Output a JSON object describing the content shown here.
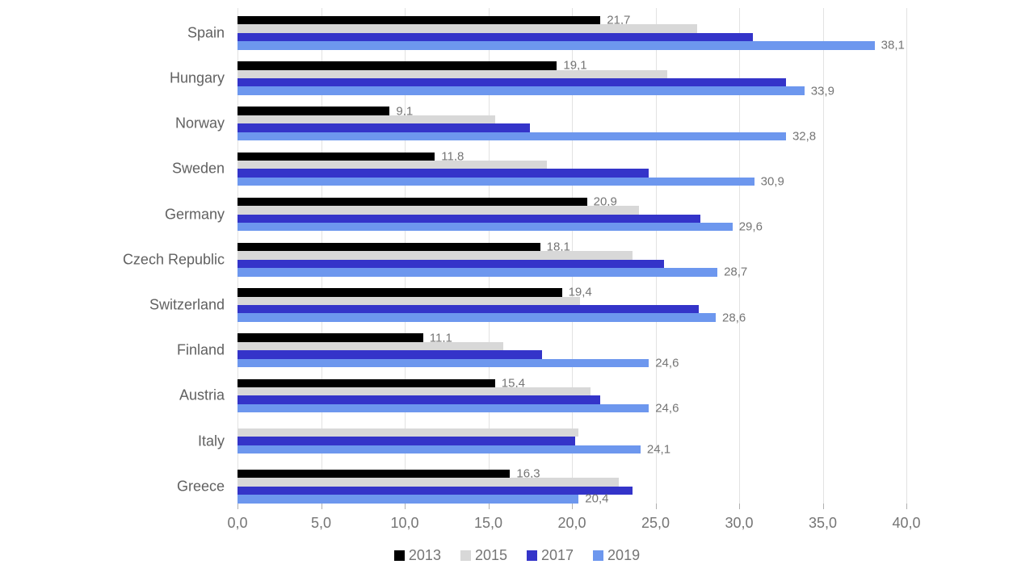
{
  "chart_data": {
    "type": "bar",
    "orientation": "horizontal",
    "title": "",
    "xlabel": "",
    "ylabel": "",
    "categories": [
      "Spain",
      "Hungary",
      "Norway",
      "Sweden",
      "Germany",
      "Czech Republic",
      "Switzerland",
      "Finland",
      "Austria",
      "Italy",
      "Greece"
    ],
    "series": [
      {
        "name": "2013",
        "color": "#000000",
        "values": [
          21.7,
          19.1,
          9.1,
          11.8,
          20.9,
          18.1,
          19.4,
          11.1,
          15.4,
          null,
          16.3
        ],
        "labels": [
          "21,7",
          "19,1",
          "9,1",
          "11,8",
          "20,9",
          "18,1",
          "19,4",
          "11,1",
          "15,4",
          null,
          "16,3"
        ]
      },
      {
        "name": "2015",
        "color": "#d8d8d8",
        "values": [
          27.5,
          25.7,
          15.4,
          18.5,
          24.0,
          23.6,
          20.5,
          15.9,
          21.1,
          20.4,
          22.8
        ],
        "labels": null
      },
      {
        "name": "2017",
        "color": "#3434c9",
        "values": [
          30.8,
          32.8,
          17.5,
          24.6,
          27.7,
          25.5,
          27.6,
          18.2,
          21.7,
          20.2,
          23.6
        ],
        "labels": null
      },
      {
        "name": "2019",
        "color": "#6d97ee",
        "values": [
          38.1,
          33.9,
          32.8,
          30.9,
          29.6,
          28.7,
          28.6,
          24.6,
          24.6,
          24.1,
          20.4
        ],
        "labels": [
          "38,1",
          "33,9",
          "32,8",
          "30,9",
          "29,6",
          "28,7",
          "28,6",
          "24,6",
          "24,6",
          "24,1",
          "20,4"
        ]
      }
    ],
    "x_axis": {
      "min": 0,
      "max": 40,
      "tick_step": 5,
      "tick_labels": [
        "0,0",
        "5,0",
        "10,0",
        "15,0",
        "20,0",
        "25,0",
        "30,0",
        "35,0",
        "40,0"
      ]
    },
    "grid": true,
    "legend": {
      "position": "bottom",
      "entries": [
        "2013",
        "2015",
        "2017",
        "2019"
      ]
    }
  }
}
